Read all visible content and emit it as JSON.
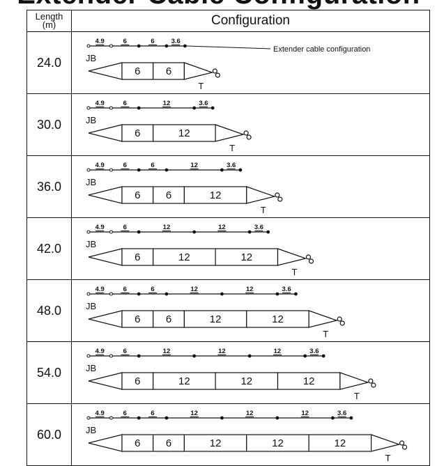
{
  "title": "Extender Cable Configuration",
  "header": {
    "length_line1": "Length",
    "length_line2": "(m)",
    "configuration": "Configuration"
  },
  "labels": {
    "junction_box": "JB",
    "terminator": "T"
  },
  "callout": "Extender cable configuration",
  "rows": [
    {
      "length": "24.0",
      "extenders": [
        "4.9",
        "6",
        "6",
        "3.6"
      ],
      "segments": [
        "6",
        "6"
      ]
    },
    {
      "length": "30.0",
      "extenders": [
        "4.9",
        "6",
        "12",
        "3.6"
      ],
      "segments": [
        "6",
        "12"
      ]
    },
    {
      "length": "36.0",
      "extenders": [
        "4.9",
        "6",
        "6",
        "12",
        "3.6"
      ],
      "segments": [
        "6",
        "6",
        "12"
      ]
    },
    {
      "length": "42.0",
      "extenders": [
        "4.9",
        "6",
        "12",
        "12",
        "3.6"
      ],
      "segments": [
        "6",
        "12",
        "12"
      ]
    },
    {
      "length": "48.0",
      "extenders": [
        "4.9",
        "6",
        "6",
        "12",
        "12",
        "3.6"
      ],
      "segments": [
        "6",
        "6",
        "12",
        "12"
      ]
    },
    {
      "length": "54.0",
      "extenders": [
        "4.9",
        "6",
        "12",
        "12",
        "12",
        "3.6"
      ],
      "segments": [
        "6",
        "12",
        "12",
        "12"
      ]
    },
    {
      "length": "60.0",
      "extenders": [
        "4.9",
        "6",
        "6",
        "12",
        "12",
        "12",
        "3.6"
      ],
      "segments": [
        "6",
        "6",
        "12",
        "12",
        "12"
      ]
    }
  ]
}
